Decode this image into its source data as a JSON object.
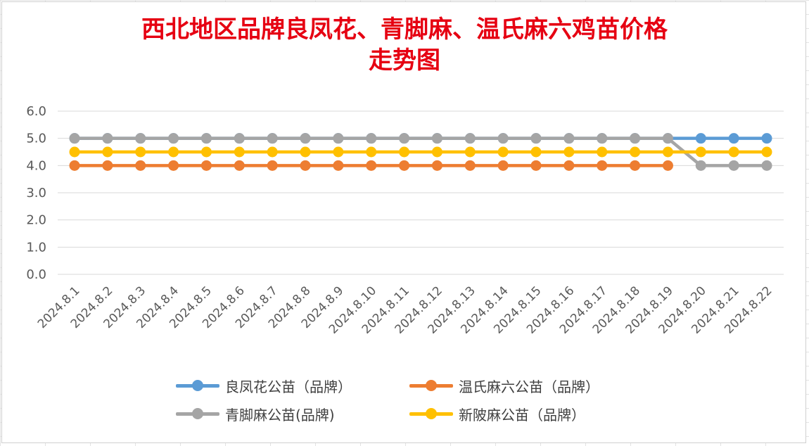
{
  "title": {
    "line1": "西北地区品牌良凤花、青脚麻、温氏麻六鸡苗价格",
    "line2": "走势图"
  },
  "chart_data": {
    "type": "line",
    "title": "西北地区品牌良凤花、青脚麻、温氏麻六鸡苗价格走势图",
    "xlabel": "",
    "ylabel": "",
    "ylim": [
      0,
      6
    ],
    "y_ticks": [
      "0.0",
      "1.0",
      "2.0",
      "3.0",
      "4.0",
      "5.0",
      "6.0"
    ],
    "grid": true,
    "legend_position": "bottom",
    "categories": [
      "2024.8.1",
      "2024.8.2",
      "2024.8.3",
      "2024.8.4",
      "2024.8.5",
      "2024.8.6",
      "2024.8.7",
      "2024.8.8",
      "2024.8.9",
      "2024.8.10",
      "2024.8.11",
      "2024.8.12",
      "2024.8.13",
      "2024.8.14",
      "2024.8.15",
      "2024.8.16",
      "2024.8.17",
      "2024.8.18",
      "2024.8.19",
      "2024.8.20",
      "2024.8.21",
      "2024.8.22"
    ],
    "series": [
      {
        "name": "良凤花公苗（品牌）",
        "color": "#5b9bd5",
        "values": [
          5,
          5,
          5,
          5,
          5,
          5,
          5,
          5,
          5,
          5,
          5,
          5,
          5,
          5,
          5,
          5,
          5,
          5,
          5,
          5,
          5,
          5
        ]
      },
      {
        "name": "温氏麻六公苗（品牌）",
        "color": "#ed7d31",
        "values": [
          4,
          4,
          4,
          4,
          4,
          4,
          4,
          4,
          4,
          4,
          4,
          4,
          4,
          4,
          4,
          4,
          4,
          4,
          4,
          null,
          null,
          null
        ]
      },
      {
        "name": "青脚麻公苗(品牌)",
        "color": "#a5a5a5",
        "values": [
          5,
          5,
          5,
          5,
          5,
          5,
          5,
          5,
          5,
          5,
          5,
          5,
          5,
          5,
          5,
          5,
          5,
          5,
          5,
          4,
          4,
          4
        ]
      },
      {
        "name": "新陂麻公苗（品牌）",
        "color": "#ffc000",
        "values": [
          4.5,
          4.5,
          4.5,
          4.5,
          4.5,
          4.5,
          4.5,
          4.5,
          4.5,
          4.5,
          4.5,
          4.5,
          4.5,
          4.5,
          4.5,
          4.5,
          4.5,
          4.5,
          4.5,
          4.5,
          4.5,
          4.5
        ]
      }
    ]
  },
  "legend": [
    {
      "label": "良凤花公苗（品牌）",
      "color": "#5b9bd5"
    },
    {
      "label": "温氏麻六公苗（品牌）",
      "color": "#ed7d31"
    },
    {
      "label": "青脚麻公苗(品牌)",
      "color": "#a5a5a5"
    },
    {
      "label": "新陂麻公苗（品牌）",
      "color": "#ffc000"
    }
  ]
}
